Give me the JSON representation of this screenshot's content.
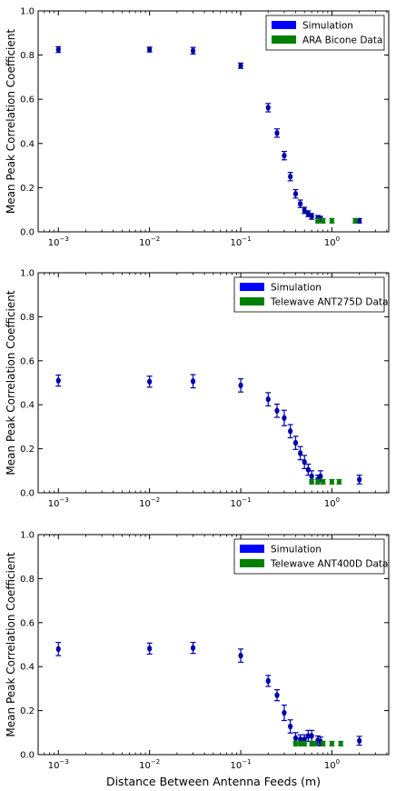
{
  "chart_data": [
    {
      "type": "scatter",
      "xscale": "log",
      "xlim": [
        0.0006,
        4.2
      ],
      "ylim": [
        0,
        1
      ],
      "yticks": [
        0.0,
        0.2,
        0.4,
        0.6,
        0.8,
        1.0
      ],
      "ytick_labels": [
        "0.0",
        "0.2",
        "0.4",
        "0.6",
        "0.8",
        "1.0"
      ],
      "xticks": [
        0.001,
        0.01,
        0.1,
        1
      ],
      "ylabel": "Mean Peak Correlation Coefficient",
      "xlabel": "",
      "legend_position": "top-right",
      "series": [
        {
          "name": "Simulation",
          "color": "#0000ff",
          "marker_color": "#0000aa",
          "x": [
            0.001,
            0.01,
            0.03,
            0.1,
            0.2,
            0.25,
            0.3,
            0.35,
            0.4,
            0.45,
            0.5,
            0.55,
            0.6,
            0.7,
            0.75,
            2.0
          ],
          "y": [
            0.825,
            0.825,
            0.82,
            0.752,
            0.562,
            0.447,
            0.345,
            0.25,
            0.172,
            0.127,
            0.097,
            0.082,
            0.07,
            0.062,
            0.058,
            0.05
          ],
          "yerr": [
            0.013,
            0.011,
            0.015,
            0.012,
            0.019,
            0.019,
            0.019,
            0.019,
            0.019,
            0.017,
            0.014,
            0.013,
            0.013,
            0.012,
            0.012,
            0.01
          ]
        },
        {
          "name": "ARA Bicone Data",
          "color": "#008000",
          "marker_color": "#008000",
          "x": [
            0.7,
            0.8,
            1.0,
            1.8
          ],
          "y": [
            0.05,
            0.05,
            0.05,
            0.05
          ],
          "yerr": [
            0.01,
            0.01,
            0.01,
            0.01
          ]
        }
      ]
    },
    {
      "type": "scatter",
      "xscale": "log",
      "xlim": [
        0.0006,
        4.2
      ],
      "ylim": [
        0,
        1
      ],
      "yticks": [
        0.0,
        0.2,
        0.4,
        0.6,
        0.8,
        1.0
      ],
      "ytick_labels": [
        "0.0",
        "0.2",
        "0.4",
        "0.6",
        "0.8",
        "1.0"
      ],
      "xticks": [
        0.001,
        0.01,
        0.1,
        1
      ],
      "ylabel": "Mean Peak Correlation Coefficient",
      "xlabel": "",
      "legend_position": "top-right",
      "series": [
        {
          "name": "Simulation",
          "color": "#0000ff",
          "marker_color": "#0000aa",
          "x": [
            0.001,
            0.01,
            0.03,
            0.1,
            0.2,
            0.25,
            0.3,
            0.35,
            0.4,
            0.45,
            0.5,
            0.55,
            0.6,
            0.7,
            0.75,
            2.0
          ],
          "y": [
            0.51,
            0.505,
            0.507,
            0.488,
            0.425,
            0.373,
            0.34,
            0.28,
            0.227,
            0.18,
            0.14,
            0.105,
            0.075,
            0.06,
            0.075,
            0.06
          ],
          "yerr": [
            0.025,
            0.025,
            0.03,
            0.03,
            0.03,
            0.03,
            0.035,
            0.03,
            0.03,
            0.03,
            0.03,
            0.025,
            0.025,
            0.02,
            0.025,
            0.02
          ]
        },
        {
          "name": "Telewave ANT275D Data",
          "color": "#008000",
          "marker_color": "#008000",
          "x": [
            0.6,
            0.7,
            0.8,
            1.0,
            1.2
          ],
          "y": [
            0.05,
            0.05,
            0.05,
            0.05,
            0.05
          ],
          "yerr": [
            0.01,
            0.01,
            0.01,
            0.01,
            0.01
          ]
        }
      ]
    },
    {
      "type": "scatter",
      "xscale": "log",
      "xlim": [
        0.0006,
        4.2
      ],
      "ylim": [
        0,
        1
      ],
      "yticks": [
        0.0,
        0.2,
        0.4,
        0.6,
        0.8,
        1.0
      ],
      "ytick_labels": [
        "0.0",
        "0.2",
        "0.4",
        "0.6",
        "0.8",
        "1.0"
      ],
      "xticks": [
        0.001,
        0.01,
        0.1,
        1
      ],
      "ylabel": "Mean Peak Correlation Coefficient",
      "xlabel": "Distance Between Antenna Feeds (m)",
      "legend_position": "top-right",
      "series": [
        {
          "name": "Simulation",
          "color": "#0000ff",
          "marker_color": "#0000aa",
          "x": [
            0.001,
            0.01,
            0.03,
            0.1,
            0.2,
            0.25,
            0.3,
            0.35,
            0.4,
            0.45,
            0.5,
            0.55,
            0.6,
            0.7,
            0.75,
            2.0
          ],
          "y": [
            0.48,
            0.482,
            0.485,
            0.45,
            0.335,
            0.27,
            0.19,
            0.128,
            0.075,
            0.07,
            0.07,
            0.085,
            0.085,
            0.065,
            0.06,
            0.063
          ],
          "yerr": [
            0.03,
            0.025,
            0.025,
            0.03,
            0.025,
            0.025,
            0.035,
            0.03,
            0.025,
            0.02,
            0.02,
            0.025,
            0.025,
            0.02,
            0.02,
            0.02
          ]
        },
        {
          "name": "Telewave ANT400D Data",
          "color": "#008000",
          "marker_color": "#008000",
          "x": [
            0.4,
            0.45,
            0.5,
            0.6,
            0.65,
            0.8,
            1.0,
            1.25
          ],
          "y": [
            0.05,
            0.05,
            0.05,
            0.05,
            0.05,
            0.05,
            0.05,
            0.05
          ],
          "yerr": [
            0.01,
            0.01,
            0.01,
            0.01,
            0.01,
            0.01,
            0.01,
            0.01
          ]
        }
      ]
    }
  ]
}
